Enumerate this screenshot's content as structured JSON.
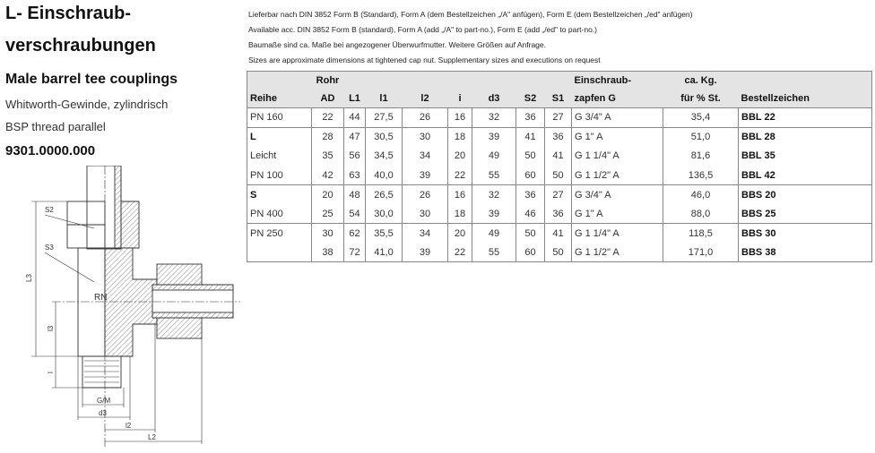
{
  "title_line1": "L- Einschraub-",
  "title_line2": "verschraubungen",
  "subtitle": "Male barrel tee couplings",
  "thread_de": "Whitworth-Gewinde, zylindrisch",
  "thread_en": "BSP thread parallel",
  "article_code": "9301.0000.000",
  "notes": [
    "Lieferbar nach DIN 3852 Form B (Standard), Form A (dem Bestellzeichen „/A\" anfügen), Form E (dem Bestellzeichen „/ed\" anfügen)",
    "Available acc. DIN 3852 Form B (standard), Form A (add „/A\" to part-no.), Form E (add „/ed\" to part-no.)",
    "Baumaße sind ca. Maße bei angezogener Überwurfmutter.  Weitere Größen auf Anfrage.",
    "Sizes are approximate dimensions at tightened cap nut. Supplementary sizes and executions on request"
  ],
  "table": {
    "header_top": [
      "",
      "Rohr",
      "",
      "",
      "",
      "",
      "",
      "",
      "",
      "Einschraub-",
      "ca. Kg.",
      ""
    ],
    "header": [
      "Reihe",
      "AD",
      "L1",
      "l1",
      "l2",
      "i",
      "d3",
      "S2",
      "S1",
      "zapfen G",
      "für % St.",
      "Bestellzeichen"
    ],
    "rows": [
      {
        "group_start": true,
        "reihe": "PN 160",
        "reihe_bold": false,
        "cells": [
          "22",
          "44",
          "27,5",
          "26",
          "16",
          "32",
          "36",
          "27",
          "G 3/4\" A",
          "35,4",
          "BBL 22"
        ]
      },
      {
        "group_start": true,
        "reihe": "L",
        "reihe_bold": true,
        "cells": [
          "28",
          "47",
          "30,5",
          "30",
          "18",
          "39",
          "41",
          "36",
          "G 1\" A",
          "51,0",
          "BBL 28"
        ]
      },
      {
        "group_start": false,
        "reihe": "Leicht",
        "reihe_bold": false,
        "cells": [
          "35",
          "56",
          "34,5",
          "34",
          "20",
          "49",
          "50",
          "41",
          "G 1 1/4\" A",
          "81,6",
          "BBL 35"
        ]
      },
      {
        "group_start": false,
        "reihe": "PN 100",
        "reihe_bold": false,
        "cells": [
          "42",
          "63",
          "40,0",
          "39",
          "22",
          "55",
          "60",
          "50",
          "G 1 1/2\" A",
          "136,5",
          "BBL 42"
        ]
      },
      {
        "group_start": true,
        "reihe": "S",
        "reihe_bold": true,
        "cells": [
          "20",
          "48",
          "26,5",
          "26",
          "16",
          "32",
          "36",
          "27",
          "G 3/4\" A",
          "46,0",
          "BBS 20"
        ]
      },
      {
        "group_start": false,
        "reihe": "PN 400",
        "reihe_bold": false,
        "cells": [
          "25",
          "54",
          "30,0",
          "30",
          "18",
          "39",
          "46",
          "36",
          "G 1\" A",
          "88,0",
          "BBS 25"
        ]
      },
      {
        "group_start": true,
        "reihe": "PN 250",
        "reihe_bold": false,
        "cells": [
          "30",
          "62",
          "35,5",
          "34",
          "20",
          "49",
          "50",
          "41",
          "G 1 1/4\" A",
          "118,5",
          "BBS 30"
        ]
      },
      {
        "group_start": false,
        "reihe": "",
        "reihe_bold": false,
        "cells": [
          "38",
          "72",
          "41,0",
          "39",
          "22",
          "55",
          "60",
          "50",
          "G 1 1/2\" A",
          "171,0",
          "BBS 38"
        ]
      }
    ]
  },
  "drawing": {
    "labels": {
      "s2": "S2",
      "s3": "S3",
      "L3": "L3",
      "l3": "l3",
      "l": "l",
      "rn": "RN",
      "gm": "G/M",
      "d3": "d3",
      "l2": "l2",
      "L2": "L2"
    }
  }
}
